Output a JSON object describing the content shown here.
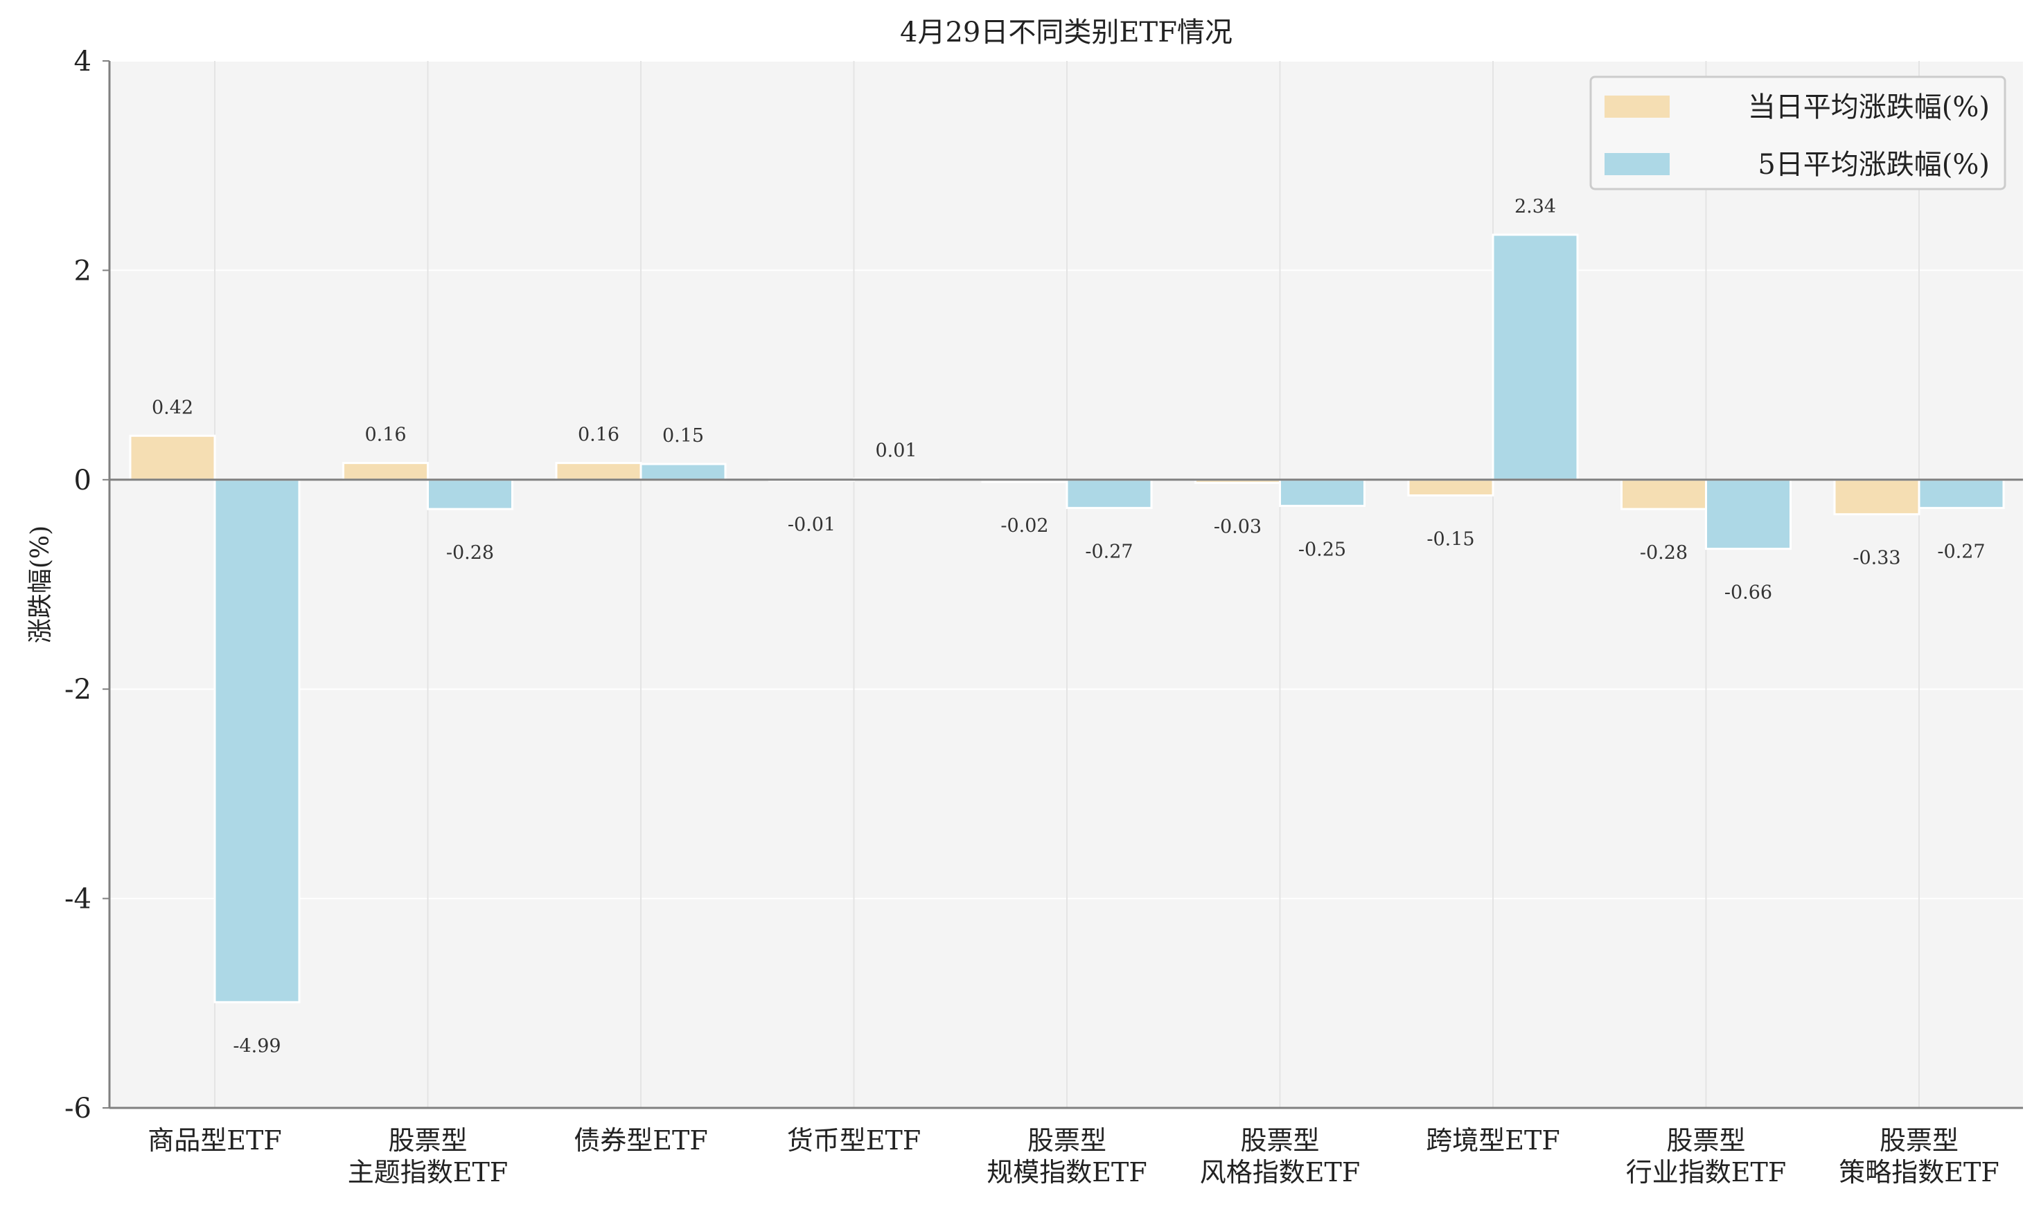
{
  "chart_data": {
    "type": "bar",
    "title": "4月29日不同类别ETF情况",
    "xlabel": "",
    "ylabel": "涨跌幅(%)",
    "ylim": [
      -6,
      4
    ],
    "yticks": [
      4,
      2,
      0,
      -2,
      -4,
      -6
    ],
    "grid": true,
    "legend_position": "top-right",
    "categories": [
      [
        "商品型ETF"
      ],
      [
        "股票型",
        "主题指数ETF"
      ],
      [
        "债券型ETF"
      ],
      [
        "货币型ETF"
      ],
      [
        "股票型",
        "规模指数ETF"
      ],
      [
        "股票型",
        "风格指数ETF"
      ],
      [
        "跨境型ETF"
      ],
      [
        "股票型",
        "行业指数ETF"
      ],
      [
        "股票型",
        "策略指数ETF"
      ]
    ],
    "series": [
      {
        "name": "当日平均涨跌幅(%)",
        "color": "#f5deb3",
        "values": [
          0.42,
          0.16,
          0.16,
          -0.01,
          -0.02,
          -0.03,
          -0.15,
          -0.28,
          -0.33
        ],
        "labels": [
          "0.42",
          "0.16",
          "0.16",
          "-0.01",
          "-0.02",
          "-0.03",
          "-0.15",
          "-0.28",
          "-0.33"
        ]
      },
      {
        "name": "5日平均涨跌幅(%)",
        "color": "#add8e6",
        "values": [
          -4.99,
          -0.28,
          0.15,
          0.01,
          -0.27,
          -0.25,
          2.34,
          -0.66,
          -0.27
        ],
        "labels": [
          "-4.99",
          "-0.28",
          "0.15",
          "0.01",
          "-0.27",
          "-0.25",
          "2.34",
          "-0.66",
          "-0.27"
        ]
      }
    ]
  }
}
